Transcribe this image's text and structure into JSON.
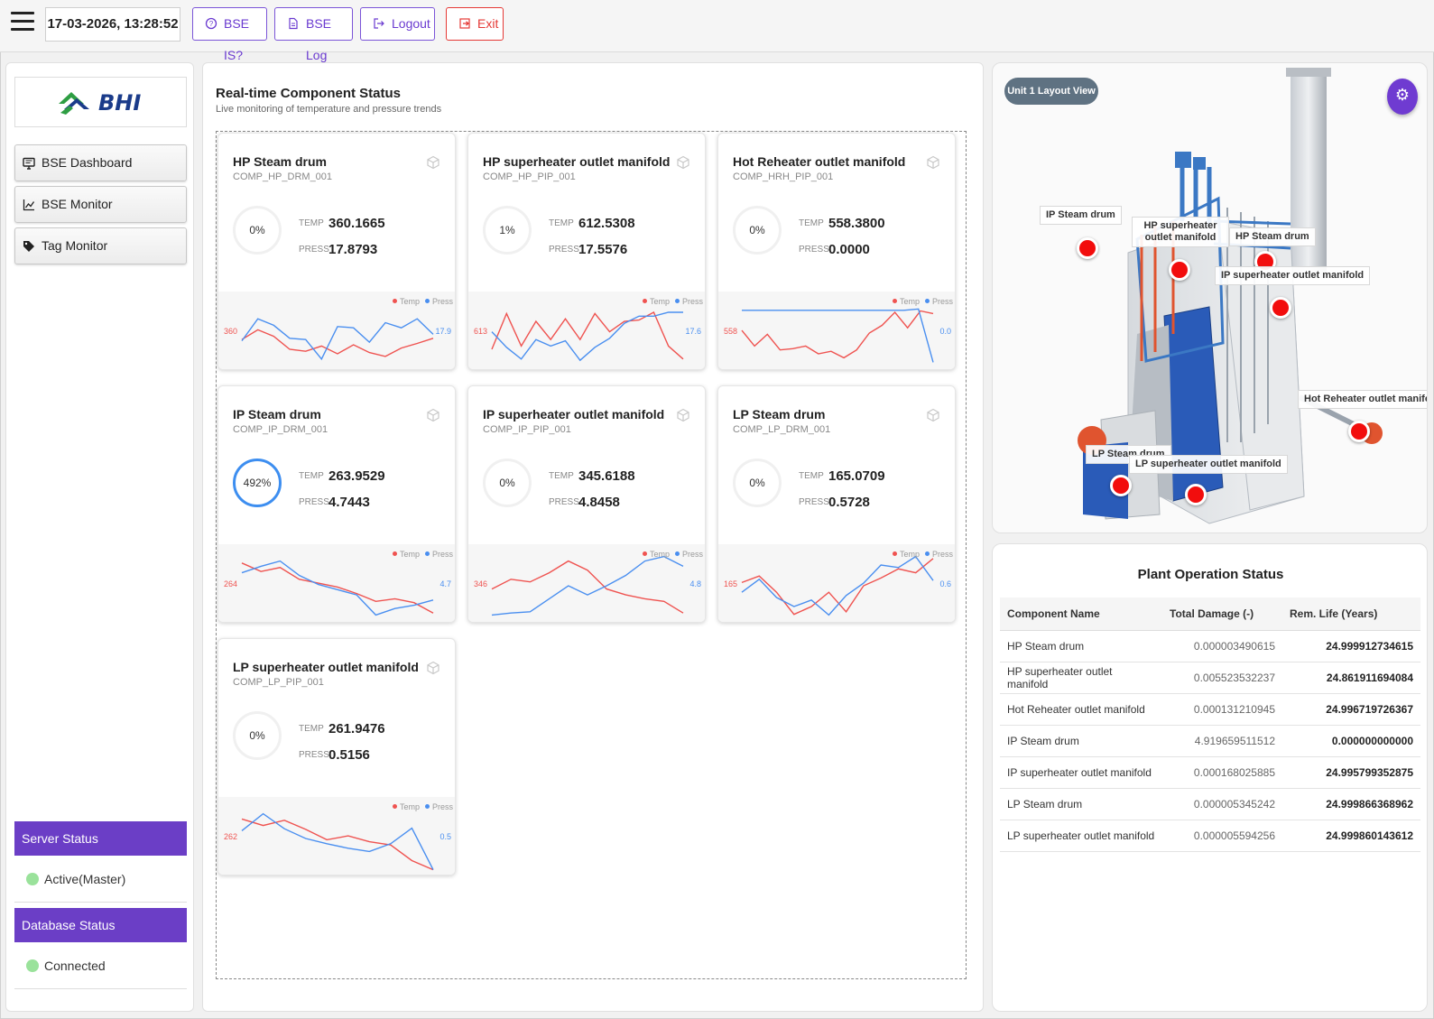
{
  "header": {
    "datetime": "17-03-2026, 13:28:52",
    "buttons": {
      "bse_is": "BSE IS?",
      "bse_log": "BSE Log",
      "logout": "Logout",
      "exit": "Exit"
    }
  },
  "sidebar": {
    "logo_text": "BHI",
    "nav": [
      "BSE Dashboard",
      "BSE Monitor",
      "Tag Monitor"
    ],
    "server_status": {
      "title": "Server Status",
      "value": "Active(Master)"
    },
    "database_status": {
      "title": "Database Status",
      "value": "Connected"
    }
  },
  "main": {
    "title": "Real-time Component Status",
    "subtitle": "Live monitoring of temperature and pressure trends",
    "labels": {
      "temp": "TEMP",
      "press": "PRESS",
      "legend_temp": "Temp",
      "legend_press": "Press"
    },
    "cards": [
      {
        "name": "HP Steam drum",
        "id": "COMP_HP_DRM_001",
        "pct": "0%",
        "temp": "360.1665",
        "press": "17.8793",
        "tlabel": "360",
        "plabel": "17.9",
        "temp_trend": [
          0.6,
          0.45,
          0.55,
          0.75,
          0.78,
          0.7,
          0.82,
          0.68,
          0.8,
          0.86,
          0.73,
          0.66,
          0.58
        ],
        "press_trend": [
          0.62,
          0.28,
          0.38,
          0.58,
          0.6,
          0.9,
          0.4,
          0.42,
          0.64,
          0.34,
          0.42,
          0.28,
          0.52
        ]
      },
      {
        "name": "HP superheater outlet manifold",
        "id": "COMP_HP_PIP_001",
        "pct": "1%",
        "temp": "612.5308",
        "press": "17.5576",
        "tlabel": "613",
        "plabel": "17.6",
        "temp_trend": [
          0.75,
          0.2,
          0.7,
          0.32,
          0.6,
          0.28,
          0.6,
          0.2,
          0.48,
          0.32,
          0.3,
          0.18,
          0.7,
          0.9
        ],
        "press_trend": [
          0.48,
          0.72,
          0.9,
          0.6,
          0.7,
          0.62,
          0.92,
          0.72,
          0.58,
          0.35,
          0.24,
          0.24,
          0.18,
          0.18
        ]
      },
      {
        "name": "Hot Reheater outlet manifold",
        "id": "COMP_HRH_PIP_001",
        "pct": "0%",
        "temp": "558.3800",
        "press": "0.0000",
        "tlabel": "558",
        "plabel": "0.0",
        "temp_trend": [
          0.46,
          0.7,
          0.52,
          0.76,
          0.74,
          0.7,
          0.82,
          0.78,
          0.88,
          0.76,
          0.5,
          0.38,
          0.18,
          0.42,
          0.16,
          0.2
        ],
        "press_trend": [
          0.15,
          0.15,
          0.15,
          0.15,
          0.15,
          0.15,
          0.15,
          0.15,
          0.15,
          0.15,
          0.15,
          0.15,
          0.13,
          0.95
        ]
      },
      {
        "name": "IP Steam drum",
        "id": "COMP_IP_DRM_001",
        "pct": "492%",
        "hot": true,
        "temp": "263.9529",
        "press": "4.7443",
        "tlabel": "264",
        "plabel": "4.7",
        "temp_trend": [
          0.15,
          0.28,
          0.22,
          0.4,
          0.46,
          0.52,
          0.62,
          0.74,
          0.7,
          0.76,
          0.92
        ],
        "press_trend": [
          0.3,
          0.2,
          0.12,
          0.34,
          0.48,
          0.56,
          0.64,
          0.95,
          0.85,
          0.8,
          0.72
        ]
      },
      {
        "name": "IP superheater outlet manifold",
        "id": "COMP_IP_PIP_001",
        "pct": "0%",
        "temp": "345.6188",
        "press": "4.8458",
        "tlabel": "346",
        "plabel": "4.8",
        "temp_trend": [
          0.55,
          0.4,
          0.44,
          0.3,
          0.12,
          0.26,
          0.55,
          0.64,
          0.7,
          0.74,
          0.92
        ],
        "press_trend": [
          0.95,
          0.92,
          0.9,
          0.7,
          0.5,
          0.64,
          0.5,
          0.34,
          0.12,
          0.05,
          0.2
        ]
      },
      {
        "name": "LP Steam drum",
        "id": "COMP_LP_DRM_001",
        "pct": "0%",
        "temp": "165.0709",
        "press": "0.5728",
        "tlabel": "165",
        "plabel": "0.6",
        "temp_trend": [
          0.45,
          0.35,
          0.6,
          0.94,
          0.82,
          0.6,
          0.9,
          0.5,
          0.38,
          0.24,
          0.3,
          0.08
        ],
        "press_trend": [
          0.6,
          0.4,
          0.68,
          0.82,
          0.72,
          0.95,
          0.65,
          0.46,
          0.18,
          0.22,
          0.05,
          0.42
        ]
      },
      {
        "name": "LP superheater outlet manifold",
        "id": "COMP_LP_PIP_001",
        "pct": "0%",
        "temp": "261.9476",
        "press": "0.5156",
        "tlabel": "262",
        "plabel": "0.5",
        "temp_trend": [
          0.2,
          0.3,
          0.22,
          0.36,
          0.52,
          0.46,
          0.55,
          0.6,
          0.84,
          0.98
        ],
        "press_trend": [
          0.38,
          0.12,
          0.35,
          0.5,
          0.58,
          0.65,
          0.7,
          0.58,
          0.34,
          0.98
        ]
      }
    ]
  },
  "layout_view": {
    "chip": "Unit 1 Layout View",
    "hotspots": [
      "IP Steam drum",
      "HP superheater outlet manifold",
      "HP Steam drum",
      "IP superheater outlet manifold",
      "Hot Reheater outlet manifo",
      "LP Steam drum",
      "LP superheater outlet manifold"
    ]
  },
  "plant_status": {
    "title": "Plant Operation Status",
    "columns": [
      "Component Name",
      "Total Damage (-)",
      "Rem. Life (Years)"
    ],
    "rows": [
      [
        "HP Steam drum",
        "0.000003490615",
        "24.999912734615"
      ],
      [
        "HP superheater outlet manifold",
        "0.005523532237",
        "24.861911694084"
      ],
      [
        "Hot Reheater outlet manifold",
        "0.000131210945",
        "24.996719726367"
      ],
      [
        "IP Steam drum",
        "4.919659511512",
        "0.000000000000"
      ],
      [
        "IP superheater outlet manifold",
        "0.000168025885",
        "24.995799352875"
      ],
      [
        "LP Steam drum",
        "0.000005345242",
        "24.999866368962"
      ],
      [
        "LP superheater outlet manifold",
        "0.000005594256",
        "24.999860143612"
      ]
    ]
  },
  "colors": {
    "accent": "#6b3ec6",
    "exit": "#e53935",
    "temp_line": "#ef5350",
    "press_line": "#4a8ff0",
    "hotspot": "#f20d0d"
  }
}
